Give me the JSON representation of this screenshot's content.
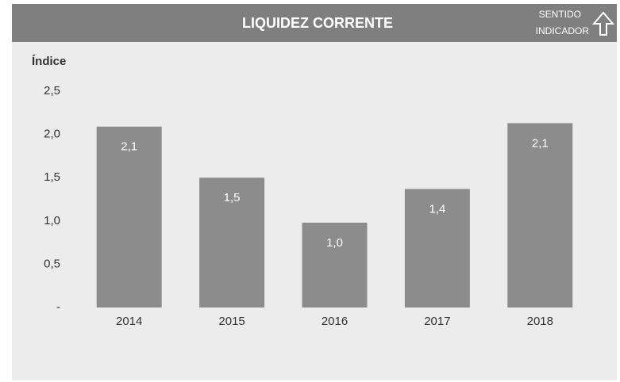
{
  "chart_data": {
    "type": "bar",
    "title": "LIQUIDEZ CORRENTE",
    "indicator_direction": [
      "SENTIDO",
      "INDICADOR"
    ],
    "y_label": "Índice",
    "categories": [
      "2014",
      "2015",
      "2016",
      "2017",
      "2018"
    ],
    "values": [
      2.09,
      1.5,
      0.98,
      1.37,
      2.13
    ],
    "value_labels": [
      "2,1",
      "1,5",
      "1,0",
      "1,4",
      "2,1"
    ],
    "color": "#8c8c8c",
    "ylim": [
      0,
      2.5
    ],
    "yticks": [
      {
        "value": 0,
        "label": "-"
      },
      {
        "value": 0.5,
        "label": "0,5"
      },
      {
        "value": 1,
        "label": "1,0"
      },
      {
        "value": 1.5,
        "label": "1,5"
      },
      {
        "value": 2,
        "label": "2,0"
      },
      {
        "value": 2.5,
        "label": "2,5"
      }
    ],
    "grid": false
  }
}
